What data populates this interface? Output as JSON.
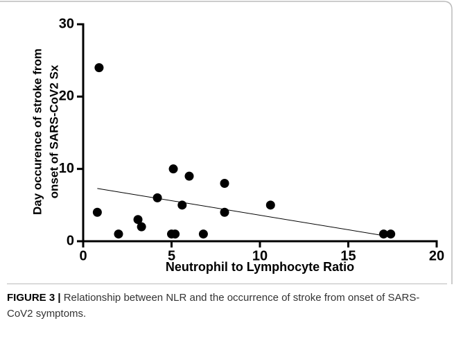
{
  "chart_data": {
    "type": "scatter",
    "xlabel": "Neutrophil to Lymphocyte Ratio",
    "ylabel": [
      "Day occurence of stroke from",
      "onset of SARS-CoV2 Sx"
    ],
    "x": [
      0.9,
      0.8,
      2.0,
      3.1,
      3.3,
      4.2,
      5.1,
      5.0,
      5.2,
      5.6,
      6.0,
      6.8,
      8.0,
      8.0,
      10.6,
      17.0,
      17.4
    ],
    "series": [
      {
        "color": "#000000",
        "values": [
          24,
          4,
          1,
          3,
          2,
          6,
          10,
          1,
          1,
          5,
          9,
          1,
          8,
          4,
          5,
          1,
          1
        ]
      }
    ],
    "trendline": {
      "x": [
        0.8,
        17.2
      ],
      "y": [
        7.3,
        0.7
      ]
    },
    "xlim": [
      0,
      20
    ],
    "ylim": [
      0,
      30
    ],
    "xticks": [
      0,
      5,
      10,
      15,
      20
    ],
    "yticks": [
      0,
      10,
      20,
      30
    ]
  },
  "caption": {
    "label": "FIGURE 3 |",
    "text": "Relationship between NLR and the occurrence of stroke from onset of SARS-CoV2 symptoms."
  }
}
